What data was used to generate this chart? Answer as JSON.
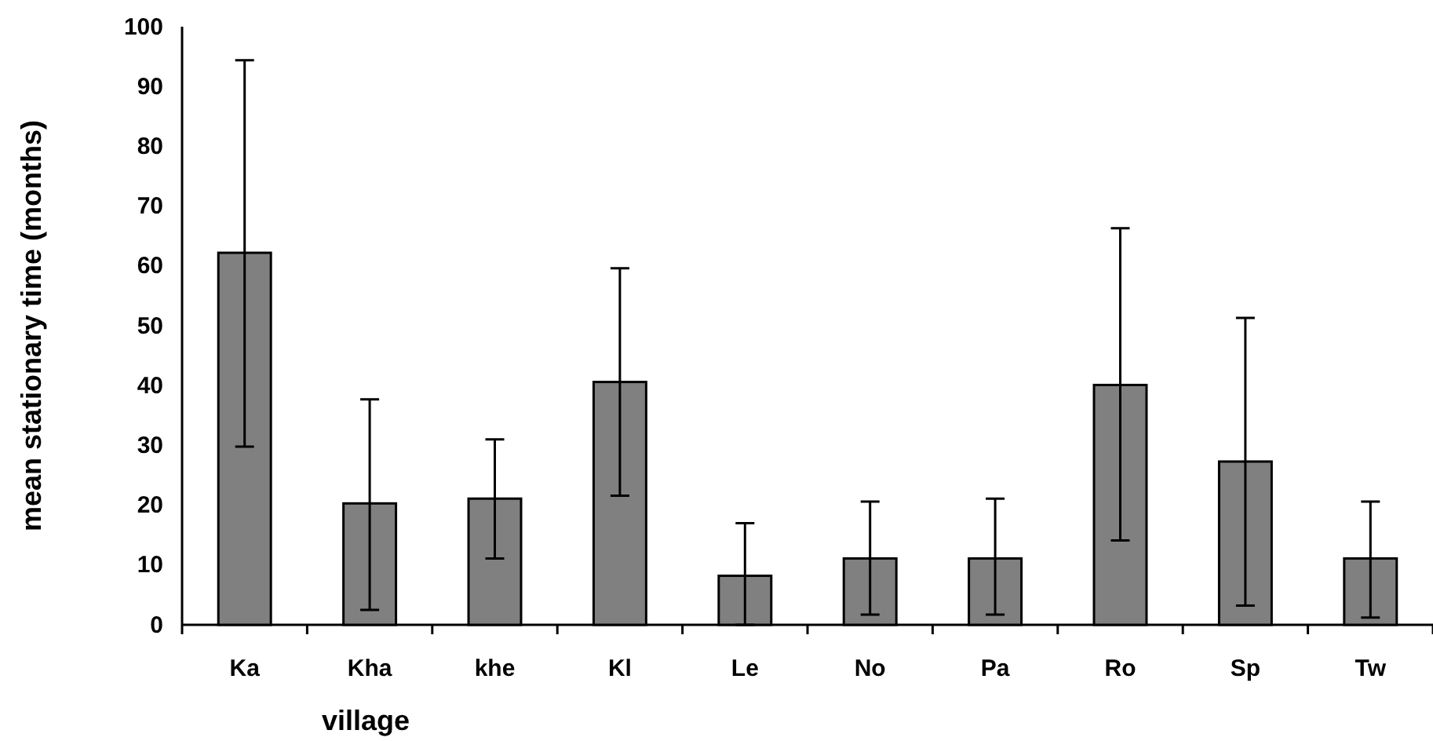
{
  "chart_data": {
    "type": "bar",
    "xlabel": "village",
    "ylabel": "mean stationary time (months)",
    "categories": [
      "Ka",
      "Kha",
      "khe",
      "Kl",
      "Le",
      "No",
      "Pa",
      "Ro",
      "Sp",
      "Tw"
    ],
    "values": [
      62.2,
      20.3,
      21.1,
      40.6,
      8.2,
      11.1,
      11.1,
      40.1,
      27.3,
      11.1
    ],
    "errors": [
      [
        29.8,
        94.4
      ],
      [
        2.5,
        37.7
      ],
      [
        11.1,
        31.0
      ],
      [
        21.6,
        59.6
      ],
      [
        0,
        17.0
      ],
      [
        1.7,
        20.6
      ],
      [
        1.7,
        21.1
      ],
      [
        14.1,
        66.3
      ],
      [
        3.2,
        51.3
      ],
      [
        1.2,
        20.6
      ]
    ],
    "color": "#808080",
    "ylim": [
      0,
      100
    ],
    "yticks": [
      0,
      10,
      20,
      30,
      40,
      50,
      60,
      70,
      80,
      90,
      100
    ],
    "grid": false
  }
}
